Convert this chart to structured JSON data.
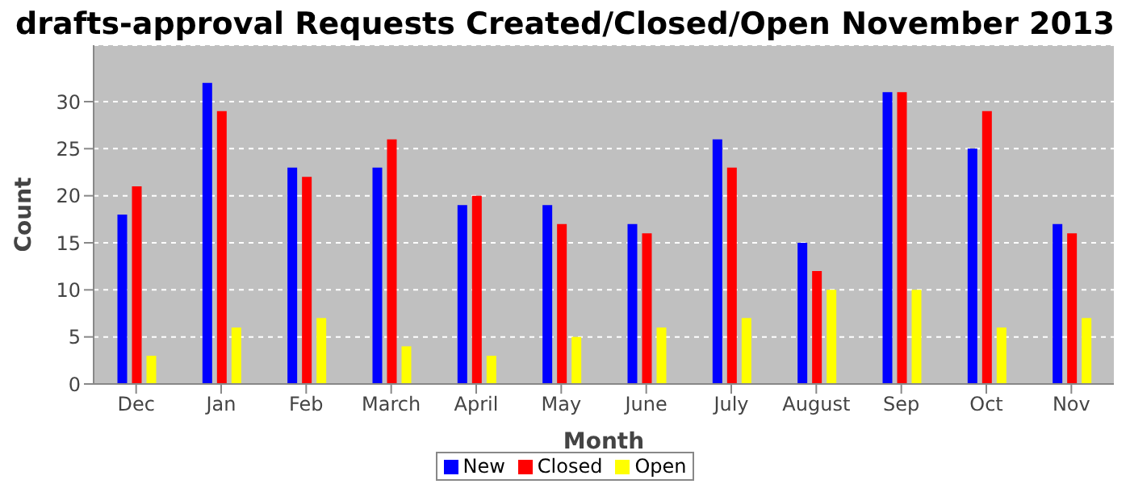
{
  "chart_data": {
    "type": "bar",
    "title": "drafts-approval Requests Created/Closed/Open November 2013",
    "xlabel": "Month",
    "ylabel": "Count",
    "categories": [
      "Dec",
      "Jan",
      "Feb",
      "March",
      "April",
      "May",
      "June",
      "July",
      "August",
      "Sep",
      "Oct",
      "Nov"
    ],
    "series": [
      {
        "name": "New",
        "color": "#0000ff",
        "values": [
          18,
          32,
          23,
          23,
          19,
          19,
          17,
          26,
          15,
          31,
          25,
          17
        ]
      },
      {
        "name": "Closed",
        "color": "#ff0000",
        "values": [
          21,
          29,
          22,
          26,
          20,
          17,
          16,
          23,
          12,
          31,
          29,
          16
        ]
      },
      {
        "name": "Open",
        "color": "#ffff00",
        "values": [
          3,
          6,
          7,
          4,
          3,
          5,
          6,
          7,
          10,
          10,
          6,
          7
        ]
      }
    ],
    "ylim": [
      0,
      36
    ],
    "yticks": [
      0,
      5,
      10,
      15,
      20,
      25,
      30
    ],
    "grid": "y",
    "legend": "bottom"
  }
}
